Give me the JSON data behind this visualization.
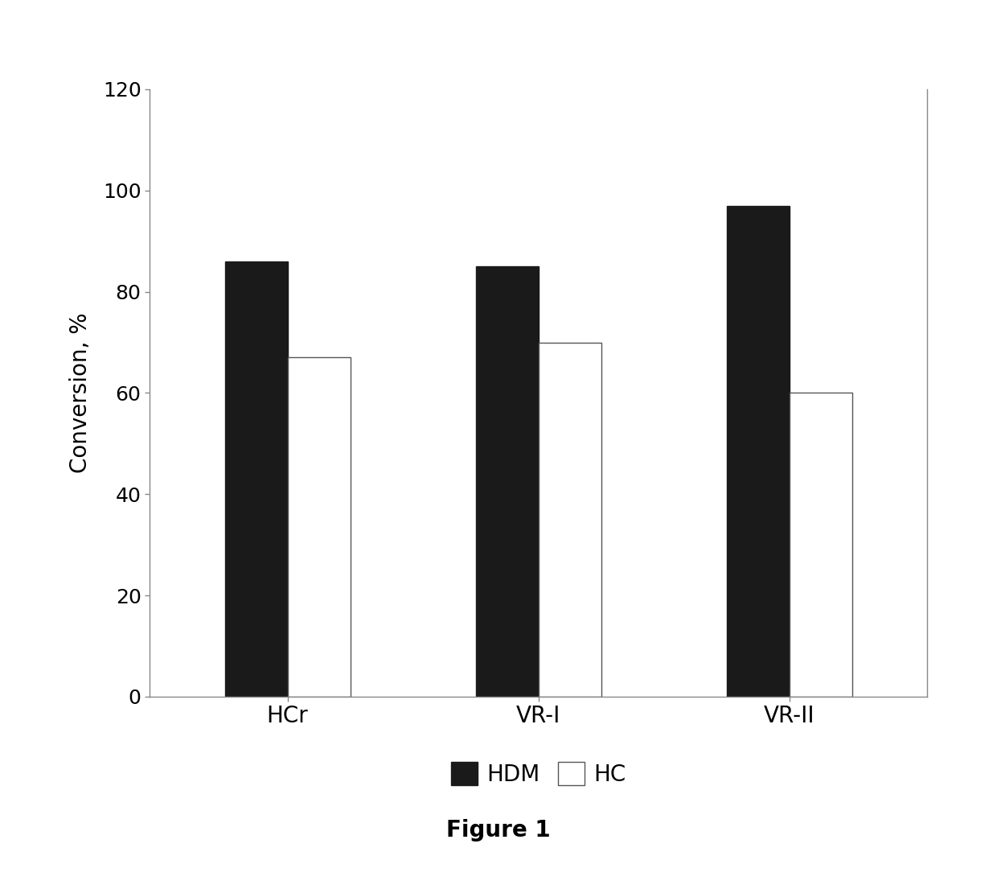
{
  "categories": [
    "HCr",
    "VR-I",
    "VR-II"
  ],
  "hdm_values": [
    86,
    85,
    97
  ],
  "hc_values": [
    67,
    70,
    60
  ],
  "hdm_color": "#1a1a1a",
  "hc_color": "#ffffff",
  "hc_edgecolor": "#555555",
  "ylabel": "Conversion, %",
  "ylim": [
    0,
    120
  ],
  "yticks": [
    0,
    20,
    40,
    60,
    80,
    100,
    120
  ],
  "legend_labels": [
    "HDM",
    "HC"
  ],
  "figure_label": "Figure 1",
  "bar_width": 0.25,
  "axis_fontsize": 20,
  "tick_fontsize": 18,
  "legend_fontsize": 20,
  "figure_label_fontsize": 20
}
